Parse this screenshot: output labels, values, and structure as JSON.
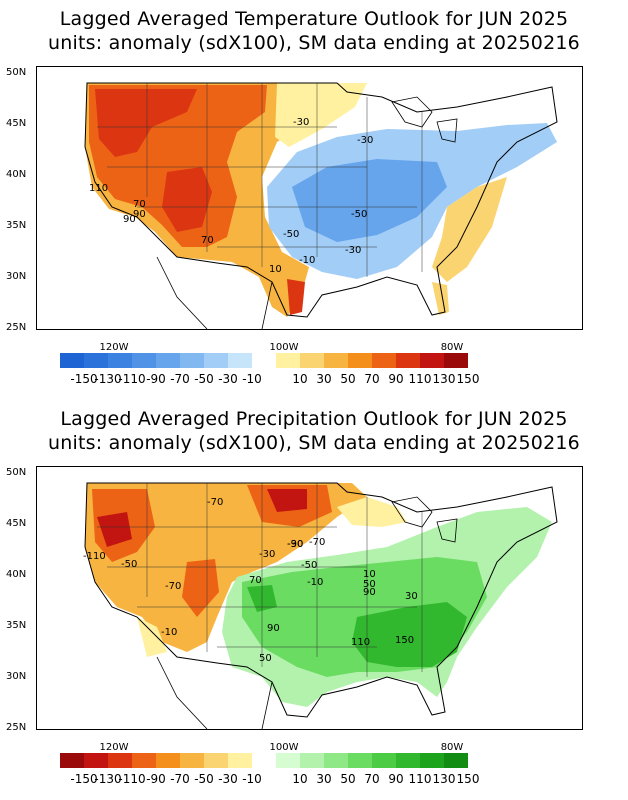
{
  "top": {
    "title_line1": "Lagged Averaged Temperature Outlook for JUN 2025",
    "title_line2": "units: anomaly (sdX100), SM data ending at 20250216",
    "contour_labels": [
      "110",
      "70",
      "90",
      "90",
      "70",
      "-30",
      "-30",
      "-50",
      "-50",
      "-30",
      "-10",
      "10"
    ]
  },
  "bottom": {
    "title_line1": "Lagged Averaged Precipitation Outlook for JUN 2025",
    "title_line2": "units: anomaly (sdX100), SM data ending at 20250216",
    "contour_labels": [
      "-70",
      "-110",
      "-50",
      "-70",
      "-10",
      "-30",
      "-30",
      "-90",
      "-70",
      "-50",
      "-10",
      "70",
      "10",
      "50",
      "90",
      "30",
      "90",
      "110",
      "150",
      "50"
    ]
  },
  "axes": {
    "lat_labels": [
      "50N",
      "45N",
      "40N",
      "35N",
      "30N",
      "25N"
    ],
    "lon_labels": [
      "120W",
      "100W",
      "80W"
    ]
  },
  "colorbar": {
    "labels": [
      "-150",
      "-130",
      "-110",
      "-90",
      "-70",
      "-50",
      "-30",
      "-10",
      "10",
      "30",
      "50",
      "70",
      "90",
      "110",
      "130",
      "150"
    ],
    "temp_colors": [
      "#1e64d2",
      "#2b72da",
      "#3c82e0",
      "#5092e6",
      "#66a4ec",
      "#82b8f0",
      "#a2cdf6",
      "#c6e4fa",
      "#fff1a0",
      "#fbd472",
      "#f8b441",
      "#f48f1c",
      "#ec6316",
      "#dc3512",
      "#c21410",
      "#9a0a0a"
    ],
    "prec_colors": [
      "#9a0a0a",
      "#c21410",
      "#dc3512",
      "#ec6316",
      "#f48f1c",
      "#f8b441",
      "#fbd472",
      "#fff1a0",
      "#d6fcd2",
      "#b2f2ac",
      "#8ee885",
      "#6adc62",
      "#4ccc44",
      "#32b82e",
      "#1ea41c",
      "#128c12"
    ]
  }
}
